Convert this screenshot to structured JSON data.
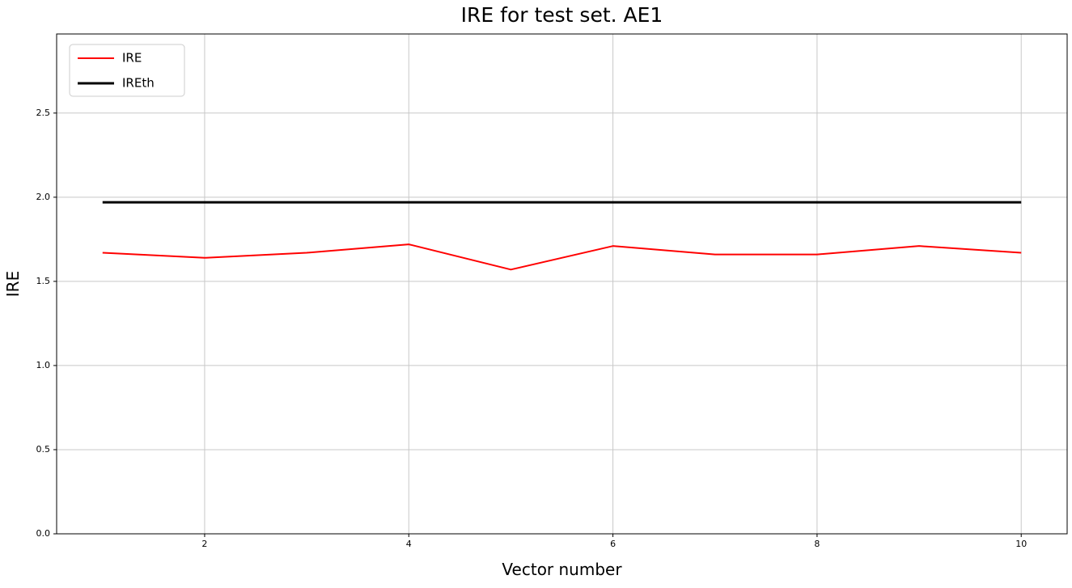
{
  "chart_data": {
    "type": "line",
    "title": "IRE for test set. AE1",
    "xlabel": "Vector number",
    "ylabel": "IRE",
    "x": [
      1,
      2,
      3,
      4,
      5,
      6,
      7,
      8,
      9,
      10
    ],
    "series": [
      {
        "name": "IRE",
        "color": "#ff0000",
        "line_width": 2,
        "values": [
          1.67,
          1.64,
          1.67,
          1.72,
          1.57,
          1.71,
          1.66,
          1.66,
          1.71,
          1.67
        ]
      },
      {
        "name": "IREth",
        "color": "#000000",
        "line_width": 3,
        "values": [
          1.97,
          1.97,
          1.97,
          1.97,
          1.97,
          1.97,
          1.97,
          1.97,
          1.97,
          1.97
        ]
      }
    ],
    "xlim": [
      0.55,
      10.45
    ],
    "ylim": [
      0,
      2.97
    ],
    "xticks": [
      2,
      4,
      6,
      8,
      10
    ],
    "xtick_labels": [
      "2",
      "4",
      "6",
      "8",
      "10"
    ],
    "yticks": [
      0.0,
      0.5,
      1.0,
      1.5,
      2.0,
      2.5
    ],
    "ytick_labels": [
      "0.0",
      "0.5",
      "1.0",
      "1.5",
      "2.0",
      "2.5"
    ],
    "grid": true,
    "grid_color": "#c8c8c8",
    "axis_color": "#000000",
    "legend_position": "upper left",
    "legend_edge_color": "#cccccc"
  }
}
